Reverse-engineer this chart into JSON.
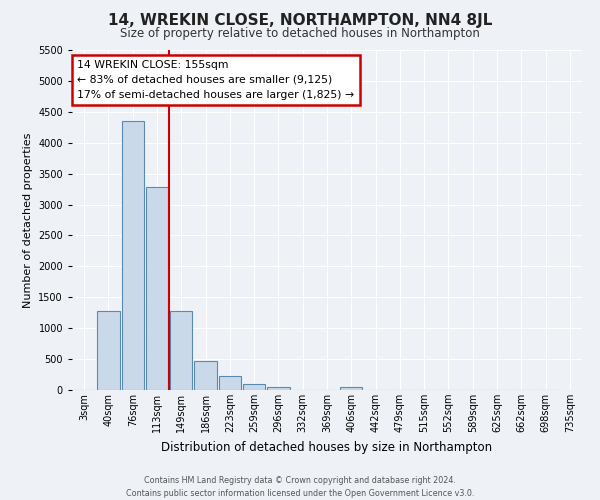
{
  "title": "14, WREKIN CLOSE, NORTHAMPTON, NN4 8JL",
  "subtitle": "Size of property relative to detached houses in Northampton",
  "xlabel": "Distribution of detached houses by size in Northampton",
  "ylabel": "Number of detached properties",
  "bin_labels": [
    "3sqm",
    "40sqm",
    "76sqm",
    "113sqm",
    "149sqm",
    "186sqm",
    "223sqm",
    "259sqm",
    "296sqm",
    "332sqm",
    "369sqm",
    "406sqm",
    "442sqm",
    "479sqm",
    "515sqm",
    "552sqm",
    "589sqm",
    "625sqm",
    "662sqm",
    "698sqm",
    "735sqm"
  ],
  "bar_values": [
    0,
    1270,
    4350,
    3290,
    1270,
    475,
    230,
    90,
    55,
    0,
    0,
    55,
    0,
    0,
    0,
    0,
    0,
    0,
    0,
    0,
    0
  ],
  "bar_color": "#c9d9e9",
  "bar_edge_color": "#5a8ab0",
  "vline_color": "#cc0000",
  "annotation_text": "14 WREKIN CLOSE: 155sqm\n← 83% of detached houses are smaller (9,125)\n17% of semi-detached houses are larger (1,825) →",
  "annotation_box_color": "#ffffff",
  "annotation_box_edge": "#cc0000",
  "ylim": [
    0,
    5500
  ],
  "yticks": [
    0,
    500,
    1000,
    1500,
    2000,
    2500,
    3000,
    3500,
    4000,
    4500,
    5000,
    5500
  ],
  "background_color": "#eef2f7",
  "grid_color": "#ffffff",
  "footer_line1": "Contains HM Land Registry data © Crown copyright and database right 2024.",
  "footer_line2": "Contains public sector information licensed under the Open Government Licence v3.0."
}
